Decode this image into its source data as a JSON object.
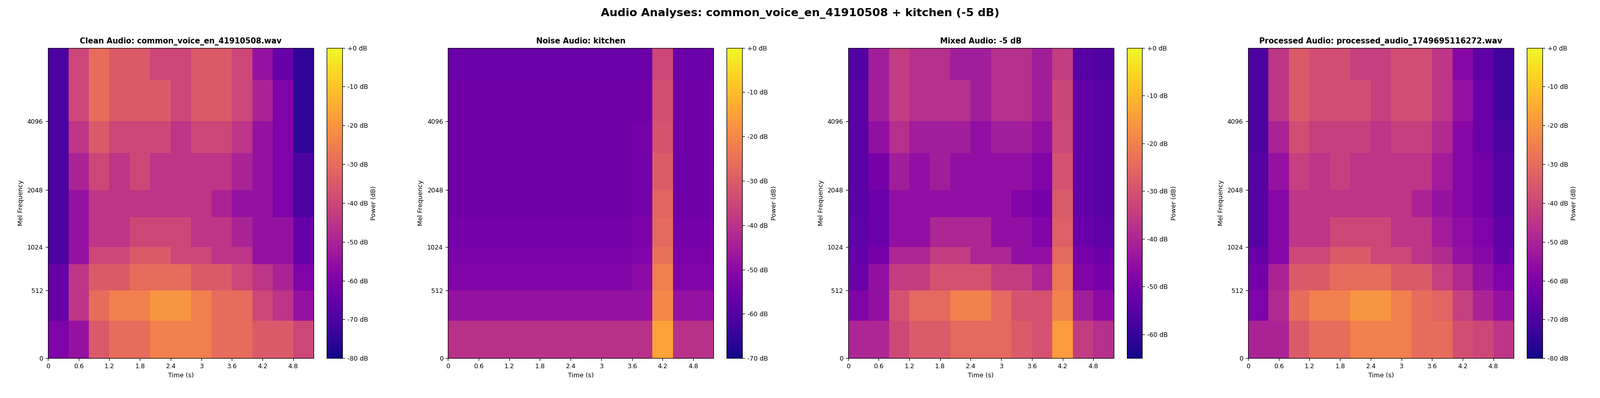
{
  "title": "Audio Analyses: common_voice_en_41910508 + kitchen (-5 dB)",
  "chart_data": [
    {
      "type": "heatmap",
      "title": "Clean Audio: common_voice_en_41910508.wav",
      "x_label": "Time (s)",
      "y_label": "Mel Frequency",
      "colorbar_label": "Power (dB)",
      "xlim": [
        0,
        5.2
      ],
      "xticks": [
        0,
        0.6,
        1.2,
        1.8,
        2.4,
        3,
        3.6,
        4.2,
        4.8
      ],
      "ylim": [
        0,
        8000
      ],
      "yticks": [
        0,
        512,
        1024,
        2048,
        4096
      ],
      "time_edges": [
        0,
        0.4,
        0.8,
        1.2,
        1.6,
        2.0,
        2.4,
        2.8,
        3.2,
        3.6,
        4.0,
        4.4,
        4.8,
        5.2
      ],
      "freq_edges": [
        0,
        250,
        512,
        800,
        1024,
        1500,
        2048,
        3000,
        4096,
        6000,
        8000
      ],
      "colorbar_range": [
        -80,
        0
      ],
      "colorbar_ticks": [
        {
          "value": 0,
          "label": "+0 dB"
        },
        {
          "value": -10,
          "label": "-10 dB"
        },
        {
          "value": -20,
          "label": "-20 dB"
        },
        {
          "value": -30,
          "label": "-30 dB"
        },
        {
          "value": -40,
          "label": "-40 dB"
        },
        {
          "value": -50,
          "label": "-50 dB"
        },
        {
          "value": -60,
          "label": "-60 dB"
        },
        {
          "value": -70,
          "label": "-70 dB"
        },
        {
          "value": -80,
          "label": "-80 dB"
        }
      ],
      "cells": [
        [
          -60,
          -55,
          -35,
          -30,
          -30,
          -25,
          -25,
          -25,
          -30,
          -30,
          -35,
          -35,
          -40
        ],
        [
          -65,
          -45,
          -30,
          -25,
          -25,
          -20,
          -20,
          -25,
          -30,
          -30,
          -40,
          -45,
          -55
        ],
        [
          -65,
          -45,
          -35,
          -35,
          -30,
          -30,
          -30,
          -35,
          -35,
          -40,
          -45,
          -50,
          -60
        ],
        [
          -70,
          -55,
          -40,
          -40,
          -35,
          -35,
          -40,
          -40,
          -45,
          -45,
          -55,
          -55,
          -65
        ],
        [
          -70,
          -55,
          -45,
          -45,
          -40,
          -40,
          -40,
          -45,
          -45,
          -50,
          -55,
          -55,
          -65
        ],
        [
          -70,
          -55,
          -45,
          -45,
          -45,
          -45,
          -45,
          -45,
          -50,
          -55,
          -55,
          -60,
          -70
        ],
        [
          -70,
          -50,
          -40,
          -45,
          -40,
          -45,
          -45,
          -45,
          -45,
          -50,
          -55,
          -60,
          -70
        ],
        [
          -70,
          -45,
          -35,
          -40,
          -40,
          -40,
          -45,
          -40,
          -40,
          -45,
          -55,
          -60,
          -75
        ],
        [
          -70,
          -40,
          -30,
          -35,
          -35,
          -35,
          -40,
          -35,
          -35,
          -40,
          -50,
          -60,
          -75
        ],
        [
          -70,
          -40,
          -30,
          -35,
          -35,
          -40,
          -40,
          -35,
          -35,
          -40,
          -55,
          -65,
          -75
        ]
      ]
    },
    {
      "type": "heatmap",
      "title": "Noise Audio: kitchen",
      "x_label": "Time (s)",
      "y_label": "Mel Frequency",
      "colorbar_label": "Power (dB)",
      "xlim": [
        0,
        5.2
      ],
      "xticks": [
        0,
        0.6,
        1.2,
        1.8,
        2.4,
        3,
        3.6,
        4.2,
        4.8
      ],
      "ylim": [
        0,
        8000
      ],
      "yticks": [
        0,
        512,
        1024,
        2048,
        4096
      ],
      "time_edges": [
        0,
        0.4,
        0.8,
        1.2,
        1.6,
        2.0,
        2.4,
        2.8,
        3.2,
        3.6,
        4.0,
        4.4,
        4.8,
        5.2
      ],
      "freq_edges": [
        0,
        250,
        512,
        800,
        1024,
        1500,
        2048,
        3000,
        4096,
        6000,
        8000
      ],
      "colorbar_range": [
        -70,
        0
      ],
      "colorbar_ticks": [
        {
          "value": 0,
          "label": "+0 dB"
        },
        {
          "value": -10,
          "label": "-10 dB"
        },
        {
          "value": -20,
          "label": "-20 dB"
        },
        {
          "value": -30,
          "label": "-30 dB"
        },
        {
          "value": -40,
          "label": "-40 dB"
        },
        {
          "value": -50,
          "label": "-50 dB"
        },
        {
          "value": -60,
          "label": "-60 dB"
        },
        {
          "value": -70,
          "label": "-70 dB"
        }
      ],
      "cells": [
        [
          -40,
          -40,
          -40,
          -40,
          -40,
          -40,
          -40,
          -40,
          -40,
          -40,
          -15,
          -40,
          -40
        ],
        [
          -48,
          -48,
          -48,
          -48,
          -48,
          -48,
          -48,
          -48,
          -48,
          -48,
          -20,
          -48,
          -48
        ],
        [
          -52,
          -52,
          -52,
          -52,
          -52,
          -52,
          -52,
          -52,
          -52,
          -50,
          -22,
          -52,
          -52
        ],
        [
          -53,
          -53,
          -53,
          -53,
          -53,
          -53,
          -53,
          -53,
          -53,
          -52,
          -25,
          -53,
          -53
        ],
        [
          -54,
          -54,
          -54,
          -54,
          -54,
          -54,
          -54,
          -54,
          -54,
          -53,
          -27,
          -54,
          -54
        ],
        [
          -55,
          -55,
          -55,
          -55,
          -55,
          -55,
          -55,
          -55,
          -55,
          -54,
          -28,
          -55,
          -55
        ],
        [
          -55,
          -55,
          -55,
          -55,
          -55,
          -55,
          -55,
          -55,
          -55,
          -54,
          -30,
          -55,
          -55
        ],
        [
          -55,
          -55,
          -55,
          -55,
          -55,
          -55,
          -55,
          -55,
          -55,
          -54,
          -32,
          -55,
          -55
        ],
        [
          -55,
          -55,
          -55,
          -55,
          -55,
          -55,
          -55,
          -55,
          -55,
          -55,
          -33,
          -55,
          -55
        ],
        [
          -56,
          -56,
          -56,
          -56,
          -56,
          -56,
          -56,
          -56,
          -56,
          -56,
          -35,
          -56,
          -56
        ]
      ]
    },
    {
      "type": "heatmap",
      "title": "Mixed Audio: -5 dB",
      "x_label": "Time (s)",
      "y_label": "Mel Frequency",
      "colorbar_label": "Power (dB)",
      "xlim": [
        0,
        5.2
      ],
      "xticks": [
        0,
        0.6,
        1.2,
        1.8,
        2.4,
        3,
        3.6,
        4.2,
        4.8
      ],
      "ylim": [
        0,
        8000
      ],
      "yticks": [
        0,
        512,
        1024,
        2048,
        4096
      ],
      "time_edges": [
        0,
        0.4,
        0.8,
        1.2,
        1.6,
        2.0,
        2.4,
        2.8,
        3.2,
        3.6,
        4.0,
        4.4,
        4.8,
        5.2
      ],
      "freq_edges": [
        0,
        250,
        512,
        800,
        1024,
        1500,
        2048,
        3000,
        4096,
        6000,
        8000
      ],
      "colorbar_range": [
        -65,
        0
      ],
      "colorbar_ticks": [
        {
          "value": 0,
          "label": "+0 dB"
        },
        {
          "value": -10,
          "label": "-10 dB"
        },
        {
          "value": -20,
          "label": "-20 dB"
        },
        {
          "value": -30,
          "label": "-30 dB"
        },
        {
          "value": -40,
          "label": "-40 dB"
        },
        {
          "value": -50,
          "label": "-50 dB"
        },
        {
          "value": -60,
          "label": "-60 dB"
        }
      ],
      "cells": [
        [
          -40,
          -40,
          -32,
          -28,
          -28,
          -25,
          -25,
          -25,
          -28,
          -30,
          -15,
          -35,
          -38
        ],
        [
          -48,
          -45,
          -30,
          -25,
          -25,
          -20,
          -20,
          -25,
          -30,
          -30,
          -20,
          -42,
          -46
        ],
        [
          -52,
          -45,
          -35,
          -35,
          -30,
          -30,
          -30,
          -35,
          -35,
          -40,
          -22,
          -48,
          -50
        ],
        [
          -53,
          -50,
          -40,
          -40,
          -35,
          -35,
          -40,
          -40,
          -45,
          -45,
          -25,
          -50,
          -52
        ],
        [
          -54,
          -52,
          -45,
          -45,
          -40,
          -40,
          -40,
          -45,
          -45,
          -48,
          -27,
          -52,
          -54
        ],
        [
          -55,
          -52,
          -45,
          -45,
          -45,
          -45,
          -45,
          -45,
          -48,
          -50,
          -28,
          -53,
          -55
        ],
        [
          -55,
          -50,
          -42,
          -45,
          -42,
          -45,
          -45,
          -45,
          -45,
          -48,
          -30,
          -53,
          -55
        ],
        [
          -55,
          -45,
          -38,
          -42,
          -42,
          -42,
          -45,
          -42,
          -42,
          -45,
          -32,
          -53,
          -55
        ],
        [
          -55,
          -42,
          -35,
          -38,
          -38,
          -38,
          -42,
          -38,
          -38,
          -42,
          -33,
          -53,
          -55
        ],
        [
          -56,
          -42,
          -35,
          -38,
          -38,
          -42,
          -42,
          -38,
          -38,
          -42,
          -35,
          -55,
          -56
        ]
      ]
    },
    {
      "type": "heatmap",
      "title": "Processed Audio: processed_audio_1749695116272.wav",
      "x_label": "Time (s)",
      "y_label": "Mel Frequency",
      "colorbar_label": "Power (dB)",
      "xlim": [
        0,
        5.2
      ],
      "xticks": [
        0,
        0.6,
        1.2,
        1.8,
        2.4,
        3,
        3.6,
        4.2,
        4.8
      ],
      "ylim": [
        0,
        8000
      ],
      "yticks": [
        0,
        512,
        1024,
        2048,
        4096
      ],
      "time_edges": [
        0,
        0.4,
        0.8,
        1.2,
        1.6,
        2.0,
        2.4,
        2.8,
        3.2,
        3.6,
        4.0,
        4.4,
        4.8,
        5.2
      ],
      "freq_edges": [
        0,
        250,
        512,
        800,
        1024,
        1500,
        2048,
        3000,
        4096,
        6000,
        8000
      ],
      "colorbar_range": [
        -80,
        0
      ],
      "colorbar_ticks": [
        {
          "value": 0,
          "label": "+0 dB"
        },
        {
          "value": -10,
          "label": "-10 dB"
        },
        {
          "value": -20,
          "label": "-20 dB"
        },
        {
          "value": -30,
          "label": "-30 dB"
        },
        {
          "value": -40,
          "label": "-40 dB"
        },
        {
          "value": -50,
          "label": "-50 dB"
        },
        {
          "value": -60,
          "label": "-60 dB"
        },
        {
          "value": -70,
          "label": "-70 dB"
        },
        {
          "value": -80,
          "label": "-80 dB"
        }
      ],
      "cells": [
        [
          -50,
          -50,
          -35,
          -30,
          -30,
          -25,
          -25,
          -25,
          -30,
          -30,
          -38,
          -40,
          -45
        ],
        [
          -60,
          -48,
          -30,
          -25,
          -25,
          -20,
          -20,
          -25,
          -30,
          -32,
          -42,
          -50,
          -55
        ],
        [
          -62,
          -50,
          -35,
          -35,
          -30,
          -30,
          -30,
          -35,
          -35,
          -42,
          -48,
          -55,
          -60
        ],
        [
          -65,
          -58,
          -40,
          -40,
          -35,
          -35,
          -40,
          -40,
          -45,
          -48,
          -55,
          -58,
          -65
        ],
        [
          -68,
          -58,
          -45,
          -45,
          -40,
          -40,
          -40,
          -45,
          -45,
          -52,
          -56,
          -60,
          -66
        ],
        [
          -68,
          -58,
          -45,
          -45,
          -45,
          -45,
          -45,
          -45,
          -50,
          -55,
          -58,
          -62,
          -68
        ],
        [
          -68,
          -55,
          -42,
          -45,
          -42,
          -45,
          -45,
          -45,
          -45,
          -52,
          -58,
          -62,
          -68
        ],
        [
          -70,
          -50,
          -38,
          -42,
          -42,
          -42,
          -45,
          -42,
          -42,
          -48,
          -58,
          -64,
          -70
        ],
        [
          -70,
          -45,
          -35,
          -38,
          -38,
          -38,
          -42,
          -38,
          -38,
          -45,
          -55,
          -64,
          -72
        ],
        [
          -70,
          -45,
          -35,
          -38,
          -38,
          -42,
          -42,
          -38,
          -38,
          -45,
          -58,
          -66,
          -72
        ]
      ]
    }
  ]
}
